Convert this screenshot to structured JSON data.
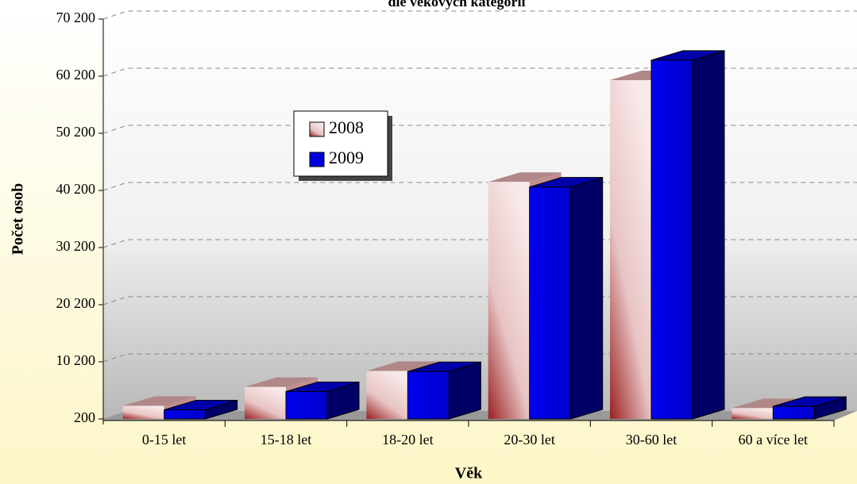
{
  "chart_data": {
    "type": "bar3d",
    "title": "dle věkových kategorií",
    "x_label": "Věk",
    "y_label": "Počet osob",
    "categories": [
      "0-15 let",
      "15-18 let",
      "18-20 let",
      "20-30 let",
      "30-60 let",
      "60 a více let"
    ],
    "series": [
      {
        "name": "2008",
        "color": "#e8c4c4",
        "values": [
          2500,
          5800,
          8600,
          41700,
          59500,
          2100
        ]
      },
      {
        "name": "2009",
        "color": "#0000ee",
        "values": [
          1800,
          5000,
          8500,
          40800,
          63000,
          2400
        ]
      }
    ],
    "ylim": [
      200,
      70200
    ],
    "yticks": [
      {
        "value": 200,
        "label": "200"
      },
      {
        "value": 10200,
        "label": "10 200"
      },
      {
        "value": 20200,
        "label": "20 200"
      },
      {
        "value": 30200,
        "label": "30 200"
      },
      {
        "value": 40200,
        "label": "40 200"
      },
      {
        "value": 50200,
        "label": "50 200"
      },
      {
        "value": 60200,
        "label": "60 200"
      },
      {
        "value": 70200,
        "label": "70 200"
      }
    ],
    "grid": true
  }
}
